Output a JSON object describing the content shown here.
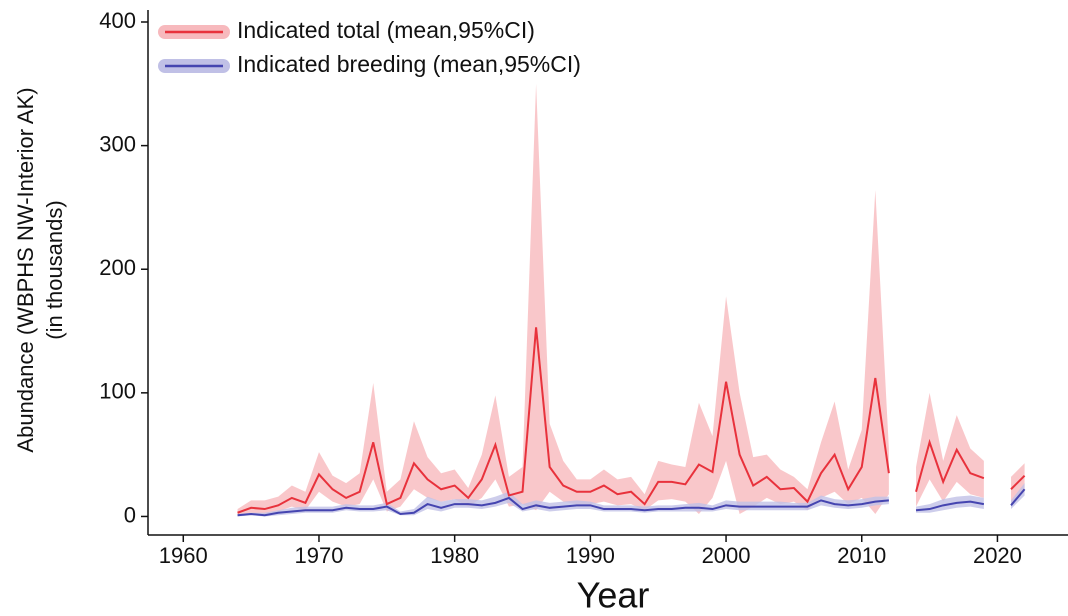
{
  "chart_data": {
    "type": "line",
    "xlabel": "Year",
    "ylabel": [
      "Abundance (WBPHS NW-Interior AK)",
      "(in thousands)"
    ],
    "x": [
      1964,
      1965,
      1966,
      1967,
      1968,
      1969,
      1970,
      1971,
      1972,
      1973,
      1974,
      1975,
      1976,
      1977,
      1978,
      1979,
      1980,
      1981,
      1982,
      1983,
      1984,
      1985,
      1986,
      1987,
      1988,
      1989,
      1990,
      1991,
      1992,
      1993,
      1994,
      1995,
      1996,
      1997,
      1998,
      1999,
      2000,
      2001,
      2002,
      2003,
      2004,
      2005,
      2006,
      2007,
      2008,
      2009,
      2010,
      2011,
      2012,
      2013,
      2014,
      2015,
      2016,
      2017,
      2018,
      2019,
      2020,
      2021,
      2022
    ],
    "series": [
      {
        "name": "Indicated total (mean,95%CI)",
        "color": "#e8323c",
        "band_color": "#f7b9bd",
        "values": [
          3,
          7,
          6,
          9,
          15,
          11,
          34,
          22,
          15,
          20,
          60,
          10,
          15,
          43,
          30,
          22,
          25,
          15,
          30,
          58,
          17,
          20,
          153,
          40,
          25,
          20,
          20,
          25,
          18,
          20,
          10,
          28,
          28,
          26,
          42,
          36,
          109,
          50,
          25,
          32,
          22,
          23,
          12,
          35,
          50,
          22,
          40,
          112,
          35,
          null,
          20,
          60,
          28,
          54,
          35,
          31,
          null,
          22,
          33
        ],
        "upper": [
          6,
          13,
          13,
          16,
          25,
          20,
          52,
          33,
          27,
          35,
          108,
          20,
          30,
          77,
          48,
          35,
          38,
          23,
          50,
          98,
          32,
          40,
          350,
          75,
          45,
          30,
          30,
          38,
          30,
          32,
          18,
          45,
          42,
          40,
          92,
          65,
          178,
          100,
          48,
          50,
          38,
          32,
          22,
          60,
          93,
          38,
          70,
          264,
          55,
          null,
          40,
          100,
          45,
          82,
          55,
          45,
          null,
          32,
          43
        ],
        "lower": [
          1,
          3,
          2,
          4,
          8,
          5,
          20,
          12,
          8,
          10,
          30,
          4,
          8,
          22,
          15,
          12,
          14,
          8,
          15,
          30,
          8,
          10,
          5,
          20,
          12,
          10,
          10,
          12,
          9,
          10,
          5,
          13,
          14,
          12,
          2,
          15,
          45,
          2,
          8,
          15,
          10,
          12,
          5,
          15,
          20,
          10,
          15,
          2,
          18,
          null,
          8,
          30,
          12,
          28,
          18,
          15,
          null,
          10,
          20
        ]
      },
      {
        "name": "Indicated breeding (mean,95%CI)",
        "color": "#4545b0",
        "band_color": "#c0c0e6",
        "values": [
          1,
          2,
          1,
          3,
          4,
          5,
          5,
          5,
          7,
          6,
          6,
          8,
          2,
          3,
          10,
          7,
          10,
          10,
          9,
          11,
          15,
          6,
          9,
          7,
          8,
          9,
          9,
          6,
          6,
          6,
          5,
          6,
          6,
          7,
          7,
          6,
          9,
          8,
          8,
          8,
          8,
          8,
          8,
          13,
          10,
          9,
          10,
          12,
          13,
          null,
          5,
          6,
          9,
          11,
          12,
          10,
          null,
          9,
          22
        ],
        "upper": [
          2,
          3,
          3,
          5,
          7,
          8,
          8,
          8,
          10,
          9,
          9,
          11,
          4,
          6,
          16,
          12,
          14,
          14,
          13,
          16,
          20,
          10,
          13,
          11,
          12,
          13,
          12,
          9,
          9,
          9,
          8,
          9,
          9,
          10,
          11,
          9,
          13,
          12,
          12,
          12,
          12,
          11,
          11,
          17,
          14,
          13,
          14,
          16,
          16,
          null,
          8,
          10,
          14,
          16,
          17,
          15,
          null,
          13,
          27
        ],
        "lower": [
          0,
          1,
          0,
          1,
          2,
          3,
          3,
          3,
          5,
          4,
          4,
          5,
          1,
          1,
          6,
          4,
          7,
          7,
          6,
          8,
          11,
          4,
          6,
          4,
          5,
          6,
          6,
          4,
          4,
          4,
          3,
          4,
          4,
          4,
          4,
          4,
          6,
          5,
          5,
          5,
          5,
          5,
          5,
          9,
          7,
          6,
          7,
          9,
          10,
          null,
          3,
          3,
          5,
          7,
          8,
          6,
          null,
          6,
          17
        ]
      }
    ],
    "xlim": [
      1957.4,
      2025.2
    ],
    "xticks": [
      1960,
      1970,
      1980,
      1990,
      2000,
      2010,
      2020
    ],
    "ylim": [
      -15,
      400
    ],
    "yticks": [
      0,
      100,
      200,
      300,
      400
    ],
    "legend": "top-left"
  }
}
